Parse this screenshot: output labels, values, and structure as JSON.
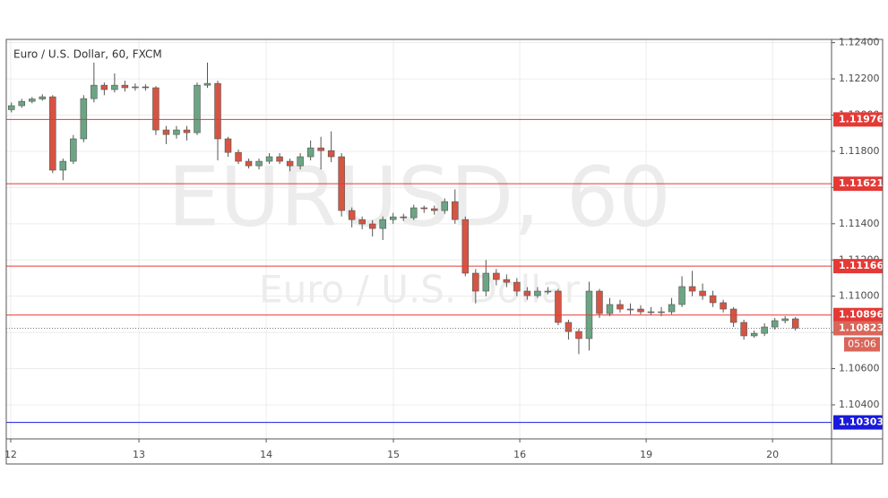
{
  "chart_data": {
    "type": "candlestick",
    "title": "Euro / U.S. Dollar, 60, FXCM",
    "watermark": "EURUSD, 60",
    "watermark_subtitle": "Euro / U.S. Dollar",
    "up_color": "#6ba583",
    "down_color": "#d75442",
    "grid": true,
    "xlim": [
      0,
      80
    ],
    "xticks": [
      {
        "value": 0.43,
        "label": "12"
      },
      {
        "value": 12.86,
        "label": "13"
      },
      {
        "value": 25.2,
        "label": "14"
      },
      {
        "value": 37.53,
        "label": "15"
      },
      {
        "value": 49.78,
        "label": "16"
      },
      {
        "value": 62.03,
        "label": "19"
      },
      {
        "value": 74.28,
        "label": "20"
      }
    ],
    "ylim": [
      1.10212,
      1.12418
    ],
    "yticks": [
      {
        "value": 1.124,
        "label": "1.12400"
      },
      {
        "value": 1.122,
        "label": "1.12200"
      },
      {
        "value": 1.12,
        "label": "1.12000"
      },
      {
        "value": 1.118,
        "label": "1.11800"
      },
      {
        "value": 1.116,
        "label": "1.11600"
      },
      {
        "value": 1.114,
        "label": "1.11400"
      },
      {
        "value": 1.112,
        "label": "1.11200"
      },
      {
        "value": 1.11,
        "label": "1.11000"
      },
      {
        "value": 1.108,
        "label": "1.10800"
      },
      {
        "value": 1.106,
        "label": "1.10600"
      },
      {
        "value": 1.104,
        "label": "1.10400"
      }
    ],
    "levels": [
      {
        "value": 1.11976,
        "color": "#e53935"
      },
      {
        "value": 1.11621,
        "color": "#e53935"
      },
      {
        "value": 1.11166,
        "color": "#e53935"
      },
      {
        "value": 1.10896,
        "color": "#e53935"
      },
      {
        "value": 1.10303,
        "color": "#1a1adb"
      }
    ],
    "last_price": {
      "value": 1.10823,
      "color": "#d9665a",
      "countdown": "05:06"
    },
    "open": [
      1.1203,
      1.12052,
      1.12076,
      1.12089,
      1.12101,
      1.11696,
      1.11745,
      1.11869,
      1.12091,
      1.12165,
      1.12141,
      1.12165,
      1.12151,
      1.12156,
      1.12151,
      1.11918,
      1.11893,
      1.11918,
      1.11903,
      1.12165,
      1.12175,
      1.11869,
      1.11794,
      1.11745,
      1.1172,
      1.11745,
      1.1177,
      1.11745,
      1.1172,
      1.1177,
      1.11819,
      1.11804,
      1.1177,
      1.11473,
      1.11423,
      1.11399,
      1.11374,
      1.11423,
      1.11438,
      1.11433,
      1.11488,
      1.11483,
      1.11473,
      1.11522,
      1.11423,
      1.11127,
      1.11028,
      1.11127,
      1.11092,
      1.11077,
      1.11028,
      1.11003,
      1.11028,
      1.11028,
      1.10855,
      1.10805,
      1.10766,
      1.11028,
      1.10904,
      1.10954,
      1.10929,
      1.10929,
      1.10914,
      1.10914,
      1.10914,
      1.10954,
      1.11053,
      1.11028,
      1.11003,
      1.10964,
      1.10929,
      1.10855,
      1.10781,
      1.10795,
      1.1083,
      1.10865,
      1.10875
    ],
    "high": [
      1.1207,
      1.1209,
      1.121,
      1.12115,
      1.1211,
      1.1176,
      1.1189,
      1.1211,
      1.1229,
      1.1218,
      1.1223,
      1.1219,
      1.12175,
      1.1217,
      1.1216,
      1.1194,
      1.1194,
      1.1194,
      1.1218,
      1.1229,
      1.1219,
      1.1188,
      1.1181,
      1.1176,
      1.1176,
      1.1179,
      1.1179,
      1.1176,
      1.1179,
      1.1186,
      1.1188,
      1.1191,
      1.1179,
      1.1149,
      1.1144,
      1.1142,
      1.1144,
      1.1146,
      1.11455,
      1.11505,
      1.115,
      1.115,
      1.1154,
      1.1159,
      1.1144,
      1.1115,
      1.112,
      1.1115,
      1.1112,
      1.111,
      1.1105,
      1.1105,
      1.1105,
      1.1104,
      1.1087,
      1.1082,
      1.1108,
      1.1104,
      1.1099,
      1.1098,
      1.1096,
      1.1095,
      1.1094,
      1.1094,
      1.1099,
      1.1111,
      1.1114,
      1.1107,
      1.1103,
      1.1098,
      1.1094,
      1.1087,
      1.1081,
      1.1085,
      1.1088,
      1.1089,
      1.10885
    ],
    "low": [
      1.12015,
      1.1204,
      1.12065,
      1.1208,
      1.1168,
      1.1164,
      1.1173,
      1.1185,
      1.1207,
      1.1211,
      1.12125,
      1.1213,
      1.12135,
      1.12135,
      1.1189,
      1.1184,
      1.1187,
      1.1186,
      1.1189,
      1.1215,
      1.1175,
      1.1177,
      1.1173,
      1.11705,
      1.117,
      1.1173,
      1.1173,
      1.1169,
      1.117,
      1.1175,
      1.117,
      1.1174,
      1.1144,
      1.1138,
      1.1137,
      1.1133,
      1.1131,
      1.114,
      1.11415,
      1.1142,
      1.1146,
      1.1145,
      1.11455,
      1.114,
      1.1111,
      1.1096,
      1.11,
      1.1106,
      1.1105,
      1.11,
      1.1098,
      1.1099,
      1.1101,
      1.1084,
      1.1076,
      1.1068,
      1.107,
      1.1088,
      1.1089,
      1.1091,
      1.109,
      1.109,
      1.10895,
      1.1089,
      1.109,
      1.1094,
      1.11,
      1.1098,
      1.1094,
      1.1091,
      1.1083,
      1.1076,
      1.1077,
      1.1078,
      1.10815,
      1.1085,
      1.1081
    ],
    "close": [
      1.12052,
      1.12076,
      1.12089,
      1.12101,
      1.11696,
      1.11745,
      1.11869,
      1.12091,
      1.12165,
      1.12141,
      1.12165,
      1.12151,
      1.12156,
      1.12151,
      1.11918,
      1.11893,
      1.11918,
      1.11903,
      1.12165,
      1.12175,
      1.11869,
      1.11794,
      1.11745,
      1.1172,
      1.11745,
      1.1177,
      1.11745,
      1.1172,
      1.1177,
      1.11819,
      1.11804,
      1.1177,
      1.11473,
      1.11423,
      1.11399,
      1.11374,
      1.11423,
      1.11438,
      1.11433,
      1.11488,
      1.11483,
      1.11473,
      1.11522,
      1.11423,
      1.11127,
      1.11028,
      1.11127,
      1.11092,
      1.11077,
      1.11028,
      1.11003,
      1.11028,
      1.11028,
      1.10855,
      1.10805,
      1.10766,
      1.11028,
      1.10904,
      1.10954,
      1.10929,
      1.10929,
      1.10914,
      1.10914,
      1.10914,
      1.10954,
      1.11053,
      1.11028,
      1.11003,
      1.10964,
      1.10929,
      1.10855,
      1.10781,
      1.10795,
      1.1083,
      1.10865,
      1.10875,
      1.10823
    ]
  }
}
